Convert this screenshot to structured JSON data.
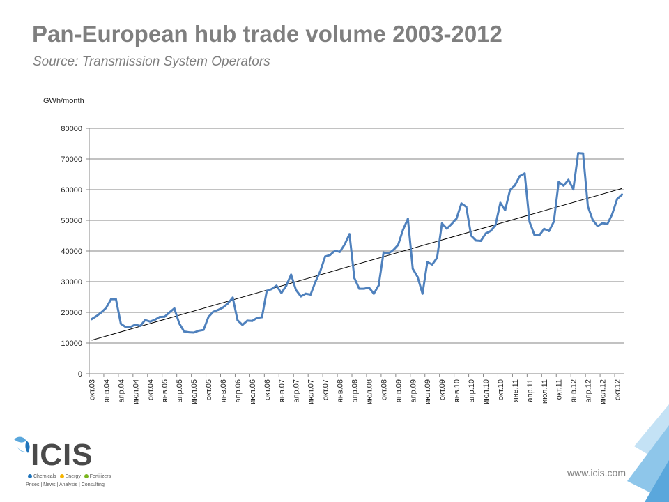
{
  "header": {
    "title": "Pan-European hub trade volume 2003-2012",
    "subtitle": "Source: Transmission System Operators"
  },
  "footer": {
    "website": "www.icis.com",
    "logo": {
      "word": "ICIS",
      "line1": [
        "Chemicals",
        "Energy",
        "Fertilizers"
      ],
      "line2": "Prices | News | Analysis | Consulting"
    }
  },
  "colors": {
    "series": "#4f81bd",
    "trend": "#000000",
    "grid": "#868686",
    "title": "#7f7f7f",
    "logo_dots": [
      "#1f74bb",
      "#f5b400",
      "#7ab51d"
    ],
    "decoration": [
      "#5aa7dc",
      "#8ec6ea",
      "#c4e2f5"
    ]
  },
  "chart_data": {
    "type": "line",
    "ylabel": "GWh/month",
    "xlabel": "",
    "ylim": [
      0,
      80000
    ],
    "yticks": [
      0,
      10000,
      20000,
      30000,
      40000,
      50000,
      60000,
      70000,
      80000
    ],
    "grid": "horizontal",
    "legend": "none",
    "x": [
      "окт.03",
      "ноя.03",
      "дек.03",
      "янв.04",
      "фев.04",
      "мар.04",
      "апр.04",
      "май.04",
      "июн.04",
      "июл.04",
      "авг.04",
      "сен.04",
      "окт.04",
      "ноя.04",
      "дек.04",
      "янв.05",
      "фев.05",
      "мар.05",
      "апр.05",
      "май.05",
      "июн.05",
      "июл.05",
      "авг.05",
      "сен.05",
      "окт.05",
      "ноя.05",
      "дек.05",
      "янв.06",
      "фев.06",
      "мар.06",
      "апр.06",
      "май.06",
      "июн.06",
      "июл.06",
      "авг.06",
      "сен.06",
      "окт.06",
      "ноя.06",
      "дек.06",
      "янв.07",
      "фев.07",
      "мар.07",
      "апр.07",
      "май.07",
      "июн.07",
      "июл.07",
      "авг.07",
      "сен.07",
      "окт.07",
      "ноя.07",
      "дек.07",
      "янв.08",
      "фев.08",
      "мар.08",
      "апр.08",
      "май.08",
      "июн.08",
      "июл.08",
      "авг.08",
      "сен.08",
      "окт.08",
      "ноя.08",
      "дек.08",
      "янв.09",
      "фев.09",
      "мар.09",
      "апр.09",
      "май.09",
      "июн.09",
      "июл.09",
      "авг.09",
      "сен.09",
      "окт.09",
      "ноя.09",
      "дек.09",
      "янв.10",
      "фев.10",
      "мар.10",
      "апр.10",
      "май.10",
      "июн.10",
      "июл.10",
      "авг.10",
      "сен.10",
      "окт.10",
      "ноя.10",
      "дек.10",
      "янв.11",
      "фев.11",
      "мар.11",
      "апр.11",
      "май.11",
      "июн.11",
      "июл.11",
      "авг.11",
      "сен.11",
      "окт.11",
      "ноя.11",
      "дек.11",
      "янв.12",
      "фев.12",
      "мар.12",
      "апр.12",
      "май.12",
      "июн.12",
      "июл.12",
      "авг.12",
      "сен.12",
      "окт.12",
      "ноя.12"
    ],
    "tick_labels": [
      "окт.03",
      "янв.04",
      "апр.04",
      "июл.04",
      "окт.04",
      "янв.05",
      "апр.05",
      "июл.05",
      "окт.05",
      "янв.06",
      "апр.06",
      "июл.06",
      "окт.06",
      "янв.07",
      "апр.07",
      "июл.07",
      "окт.07",
      "янв.08",
      "апр.08",
      "июл.08",
      "окт.08",
      "янв.09",
      "апр.09",
      "июл.09",
      "окт.09",
      "янв.10",
      "апр.10",
      "июл.10",
      "окт.10",
      "янв.11",
      "апр.11",
      "июл.11",
      "окт.11",
      "янв.12",
      "апр.12",
      "июл.12",
      "окт.12"
    ],
    "series": [
      {
        "values": [
          17800,
          18800,
          20000,
          21500,
          24300,
          24300,
          16300,
          15200,
          15300,
          16000,
          15600,
          17500,
          17000,
          17600,
          18500,
          18600,
          20000,
          21300,
          16400,
          13800,
          13500,
          13400,
          14000,
          14300,
          18500,
          20200,
          20800,
          21600,
          22900,
          24800,
          17400,
          15900,
          17300,
          17200,
          18200,
          18400,
          27000,
          27600,
          28700,
          26300,
          28700,
          32300,
          27300,
          25200,
          26100,
          25800,
          30000,
          33400,
          38200,
          38700,
          40100,
          39700,
          42100,
          45500,
          31200,
          27700,
          27700,
          28100,
          26100,
          28800,
          39500,
          39200,
          40300,
          42000,
          46900,
          50500,
          34200,
          31500,
          26100,
          36400,
          35600,
          37800,
          49000,
          47300,
          48800,
          50600,
          55500,
          54400,
          45000,
          43400,
          43300,
          45700,
          46500,
          48400,
          55700,
          53300,
          59900,
          61400,
          64400,
          65300,
          49500,
          45300,
          45100,
          47200,
          46500,
          49600,
          62500,
          61300,
          63200,
          60100,
          71900,
          71800,
          54500,
          50100,
          48100,
          49100,
          48800,
          52000,
          56900,
          58400
        ]
      }
    ],
    "trendline": {
      "type": "linear",
      "start": 10900,
      "end": 60400
    }
  }
}
